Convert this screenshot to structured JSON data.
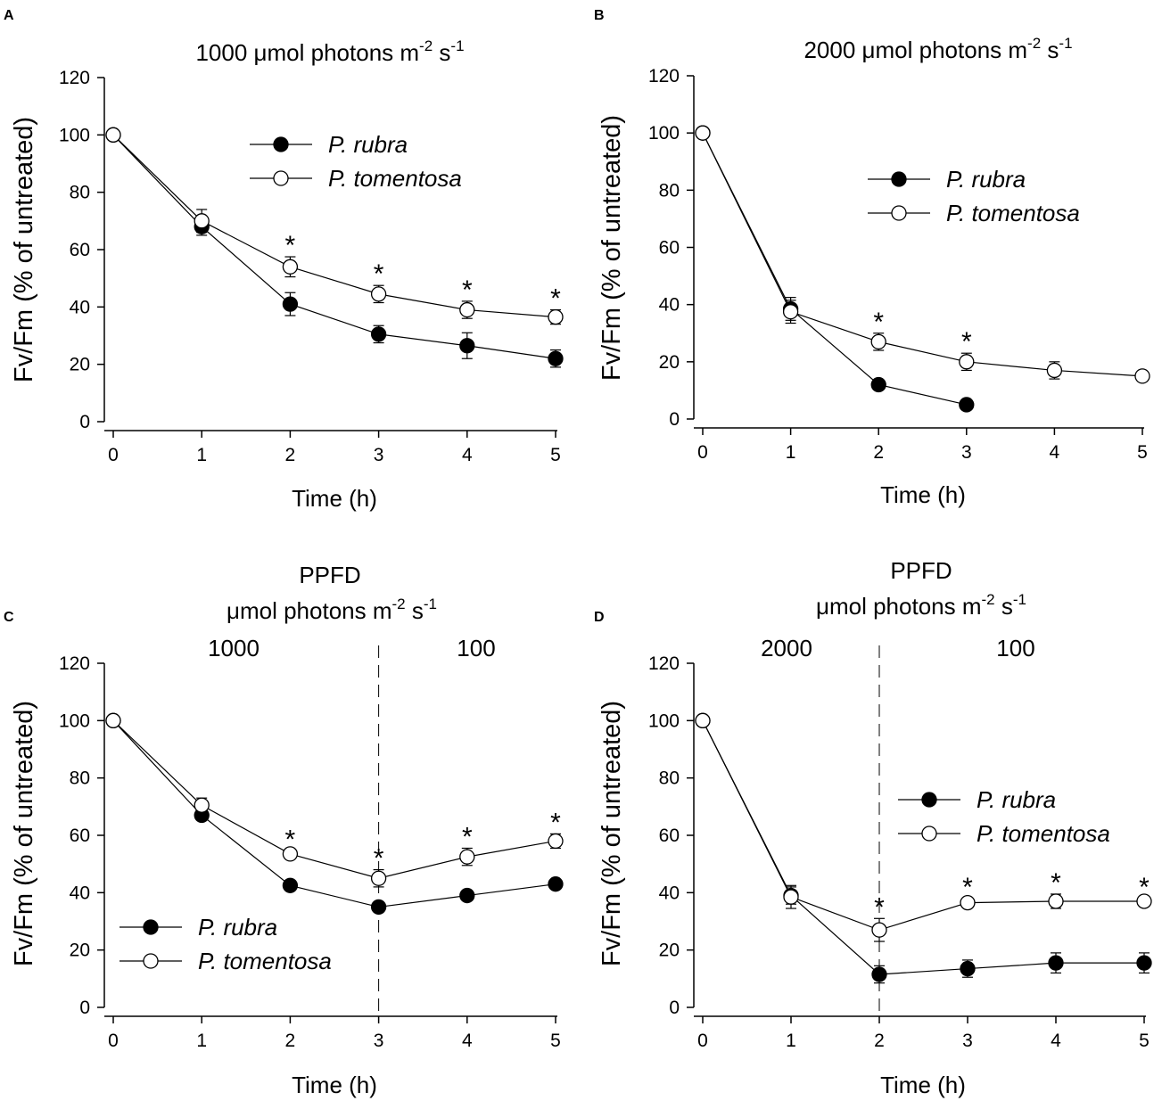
{
  "figure": {
    "panels": [
      "A",
      "B",
      "C",
      "D"
    ]
  },
  "chart_data": [
    {
      "panel": "A",
      "type": "line",
      "title": "1000  μmol photons m",
      "title_sup1": "-2",
      "title_mid": " s",
      "title_sup2": "-1",
      "xlabel": "Time (h)",
      "ylabel": "Fv/Fm (% of untreated)",
      "xlim": [
        0,
        5
      ],
      "ylim": [
        0,
        120
      ],
      "xticks": [
        0,
        1,
        2,
        3,
        4,
        5
      ],
      "yticks": [
        0,
        20,
        40,
        60,
        80,
        100,
        120
      ],
      "legend_position": "top-center",
      "series": [
        {
          "name": "P. rubra",
          "marker": "filled-circle",
          "x": [
            0,
            1,
            2,
            3,
            4,
            5
          ],
          "y": [
            100,
            68,
            41,
            30.5,
            26.5,
            22
          ],
          "err": [
            0,
            3,
            4,
            3,
            4.5,
            3
          ]
        },
        {
          "name": "P. tomentosa",
          "marker": "open-circle",
          "x": [
            0,
            1,
            2,
            3,
            4,
            5
          ],
          "y": [
            100,
            70,
            54,
            44.5,
            39,
            36.5
          ],
          "err": [
            0,
            4,
            3.5,
            3,
            3,
            2.5
          ]
        }
      ],
      "significance_marks": [
        2,
        3,
        4,
        5
      ],
      "significance_symbol": "*"
    },
    {
      "panel": "B",
      "type": "line",
      "title": "2000  μmol photons m",
      "title_sup1": "-2",
      "title_mid": " s",
      "title_sup2": "-1",
      "xlabel": "Time (h)",
      "ylabel": "Fv/Fm  (% of untreated)",
      "xlim": [
        0,
        5
      ],
      "ylim": [
        0,
        120
      ],
      "xticks": [
        0,
        1,
        2,
        3,
        4,
        5
      ],
      "yticks": [
        0,
        20,
        40,
        60,
        80,
        100,
        120
      ],
      "legend_position": "upper-right",
      "series": [
        {
          "name": "P. rubra",
          "marker": "filled-circle",
          "x": [
            0,
            1,
            2,
            3
          ],
          "y": [
            100,
            38.5,
            12,
            5
          ],
          "err": [
            0,
            4,
            1,
            1
          ]
        },
        {
          "name": "P. tomentosa",
          "marker": "open-circle",
          "x": [
            0,
            1,
            2,
            3,
            4,
            5
          ],
          "y": [
            100,
            37.5,
            27,
            20,
            17,
            15
          ],
          "err": [
            0,
            4,
            3,
            3,
            3,
            1
          ]
        }
      ],
      "significance_marks": [
        2,
        3
      ],
      "significance_symbol": "*"
    },
    {
      "panel": "C",
      "type": "line",
      "top_label": "PPFD",
      "title": "μmol photons m",
      "title_sup1": "-2",
      "title_mid": " s",
      "title_sup2": "-1",
      "phase_labels": [
        "1000",
        "100"
      ],
      "phase_split_x": 3,
      "xlabel": "Time (h)",
      "ylabel": "Fv/Fm  (% of untreated)",
      "xlim": [
        0,
        5
      ],
      "ylim": [
        0,
        120
      ],
      "xticks": [
        0,
        1,
        2,
        3,
        4,
        5
      ],
      "yticks": [
        0,
        20,
        40,
        60,
        80,
        100,
        120
      ],
      "legend_position": "lower-left",
      "series": [
        {
          "name": "P. rubra",
          "marker": "filled-circle",
          "x": [
            0,
            1,
            2,
            3,
            4,
            5
          ],
          "y": [
            100,
            67,
            42.5,
            35,
            39,
            43
          ],
          "err": [
            0,
            1.5,
            1,
            1,
            1,
            1
          ]
        },
        {
          "name": "P. tomentosa",
          "marker": "open-circle",
          "x": [
            0,
            1,
            2,
            3,
            4,
            5
          ],
          "y": [
            100,
            70.5,
            53.5,
            45,
            52.5,
            58
          ],
          "err": [
            0,
            2.5,
            1,
            3,
            3,
            2.5
          ]
        }
      ],
      "significance_marks": [
        2,
        3,
        4,
        5
      ],
      "significance_symbol": "*"
    },
    {
      "panel": "D",
      "type": "line",
      "top_label": "PPFD",
      "title": "μmol photons m",
      "title_sup1": "-2",
      "title_mid": " s",
      "title_sup2": "-1",
      "phase_labels": [
        "2000",
        "100"
      ],
      "phase_split_x": 2,
      "xlabel": "Time (h)",
      "ylabel": "Fv/Fm  (% of untreated)",
      "xlim": [
        0,
        5
      ],
      "ylim": [
        0,
        120
      ],
      "xticks": [
        0,
        1,
        2,
        3,
        4,
        5
      ],
      "yticks": [
        0,
        20,
        40,
        60,
        80,
        100,
        120
      ],
      "legend_position": "right-middle",
      "series": [
        {
          "name": "P. rubra",
          "marker": "filled-circle",
          "x": [
            0,
            1,
            2,
            3,
            4,
            5
          ],
          "y": [
            100,
            39,
            11.5,
            13.5,
            15.5,
            15.5
          ],
          "err": [
            0,
            3,
            3,
            3,
            3.5,
            3.5
          ]
        },
        {
          "name": "P. tomentosa",
          "marker": "open-circle",
          "x": [
            0,
            1,
            2,
            3,
            4,
            5
          ],
          "y": [
            100,
            38.5,
            27,
            36.5,
            37,
            37
          ],
          "err": [
            0,
            4,
            4,
            1.5,
            2.5,
            1
          ]
        }
      ],
      "significance_marks": [
        2,
        3,
        4,
        5
      ],
      "significance_symbol": "*"
    }
  ]
}
